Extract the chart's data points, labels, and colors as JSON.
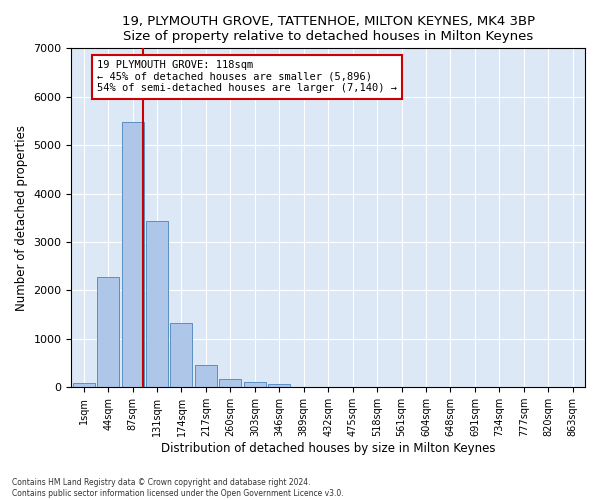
{
  "title": "19, PLYMOUTH GROVE, TATTENHOE, MILTON KEYNES, MK4 3BP",
  "subtitle": "Size of property relative to detached houses in Milton Keynes",
  "xlabel": "Distribution of detached houses by size in Milton Keynes",
  "ylabel": "Number of detached properties",
  "footer1": "Contains HM Land Registry data © Crown copyright and database right 2024.",
  "footer2": "Contains public sector information licensed under the Open Government Licence v3.0.",
  "bar_labels": [
    "1sqm",
    "44sqm",
    "87sqm",
    "131sqm",
    "174sqm",
    "217sqm",
    "260sqm",
    "303sqm",
    "346sqm",
    "389sqm",
    "432sqm",
    "475sqm",
    "518sqm",
    "561sqm",
    "604sqm",
    "648sqm",
    "691sqm",
    "734sqm",
    "777sqm",
    "820sqm",
    "863sqm"
  ],
  "bar_values": [
    80,
    2280,
    5480,
    3440,
    1320,
    460,
    160,
    100,
    60,
    0,
    0,
    0,
    0,
    0,
    0,
    0,
    0,
    0,
    0,
    0,
    0
  ],
  "bar_color": "#aec6e8",
  "bar_edge_color": "#5a8fc0",
  "background_color": "#dce8f5",
  "grid_color": "#ffffff",
  "vline_color": "#cc0000",
  "annotation_line1": "19 PLYMOUTH GROVE: 118sqm",
  "annotation_line2": "← 45% of detached houses are smaller (5,896)",
  "annotation_line3": "54% of semi-detached houses are larger (7,140) →",
  "annotation_box_color": "#cc0000",
  "ylim": [
    0,
    7000
  ],
  "yticks": [
    0,
    1000,
    2000,
    3000,
    4000,
    5000,
    6000,
    7000
  ]
}
